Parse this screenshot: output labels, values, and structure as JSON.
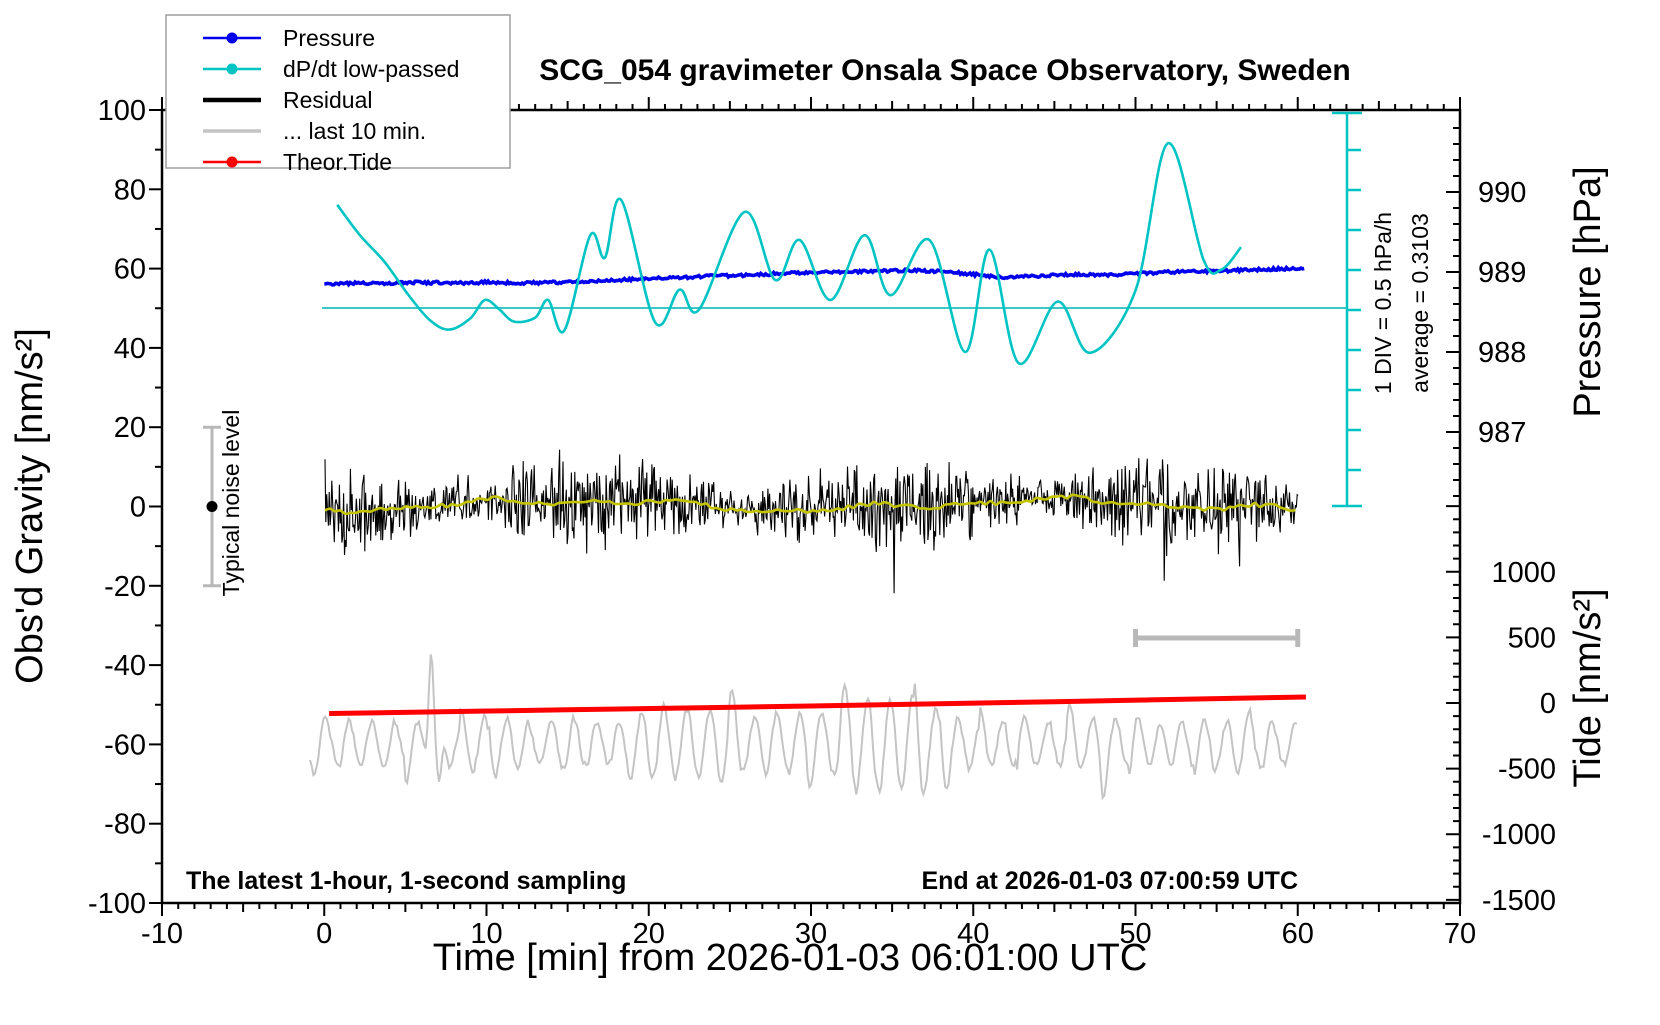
{
  "title": "SCG_054 gravimeter Onsala Space Observatory, Sweden",
  "colors": {
    "pressure": "#0000ee",
    "dpdt": "#00c3c3",
    "dpdt_mean_line": "#3cc6c6",
    "residual": "#000000",
    "residual_smoothed": "#c3c300",
    "last10": "#c4c4c4",
    "tide": "#ff0000",
    "scalebar_gray": "#b8b8b8",
    "frame": "#000000"
  },
  "legend": {
    "items": [
      {
        "label": "Pressure",
        "color": "#0000ee",
        "marker": "line-dot"
      },
      {
        "label": "dP/dt low-passed",
        "color": "#00c3c3",
        "marker": "line-dot"
      },
      {
        "label": "Residual",
        "color": "#000000",
        "marker": "line-thick"
      },
      {
        "label": "... last 10 min.",
        "color": "#c4c4c4",
        "marker": "line"
      },
      {
        "label": "Theor.Tide",
        "color": "#ff0000",
        "marker": "line-dot"
      }
    ]
  },
  "axes": {
    "x": {
      "label": "Time [min] from 2026-01-03 06:01:00 UTC",
      "min": -10,
      "max": 70,
      "major_tick_step": 10,
      "minor_tick_step": 1,
      "tick_values": [
        -10,
        0,
        10,
        20,
        30,
        40,
        50,
        60,
        70
      ]
    },
    "gravity": {
      "label": "Obs'd Gravity [nm/s²]",
      "min": -100,
      "max": 100,
      "major_tick_step": 20,
      "minor_tick_step": 10,
      "tick_values": [
        100,
        80,
        60,
        40,
        20,
        0,
        -20,
        -40,
        -60,
        -80,
        -100
      ]
    },
    "pressure": {
      "label": "Pressure [hPa]",
      "tick_values": [
        990,
        989,
        988,
        987
      ],
      "minor_tick_step": 0.2
    },
    "tide": {
      "label": "Tide [nm/s²]",
      "tick_values": [
        1000,
        500,
        0,
        -500,
        -1000,
        -1500
      ],
      "minor_tick_step": 100
    }
  },
  "annotations": {
    "div_scale": "1 DIV = 0.5 hPa/h",
    "average": "average = 0.3103",
    "noise_level": "Typical noise level",
    "sampling_note": "The latest 1-hour, 1-second sampling",
    "end_time": "End at 2026-01-03 07:00:59 UTC"
  },
  "chart_data": {
    "type": "line",
    "title": "SCG_054 gravimeter Onsala Space Observatory, Sweden",
    "xlabel": "Time [min] from 2026-01-03 06:01:00 UTC",
    "x_range_min": [
      -10,
      70
    ],
    "gravity_range": [
      -100,
      100
    ],
    "pressure_ticks_hpa": [
      987,
      988,
      989,
      990
    ],
    "tide_range": [
      -1500,
      1000
    ],
    "series": [
      {
        "name": "Pressure",
        "axis": "pressure",
        "units": "hPa",
        "x_min": [
          0,
          2,
          4,
          6,
          8,
          10,
          12,
          14,
          16,
          18,
          20,
          22,
          24,
          26,
          28,
          30,
          32,
          34,
          36,
          38,
          40,
          42,
          44,
          46,
          48,
          50,
          52,
          54,
          56,
          58,
          60.5
        ],
        "values": [
          988.85,
          988.86,
          988.86,
          988.87,
          988.86,
          988.87,
          988.86,
          988.87,
          988.88,
          988.9,
          988.92,
          988.93,
          988.95,
          988.96,
          988.98,
          988.99,
          989.0,
          989.01,
          989.02,
          989.01,
          988.97,
          988.93,
          988.95,
          988.97,
          988.96,
          988.98,
          989.0,
          989.01,
          989.02,
          989.03,
          989.05
        ]
      },
      {
        "name": "dP/dt low-passed",
        "axis": "dpdt",
        "units": "hPa/h",
        "mean": 0.3103,
        "div_value_hpa_per_h": 0.5,
        "x_min": [
          0.8,
          2.2,
          3.7,
          5.2,
          6.5,
          7.7,
          9.0,
          9.9,
          10.8,
          11.7,
          13.0,
          13.8,
          14.8,
          16.4,
          17.3,
          18.3,
          20.4,
          21.9,
          23.1,
          25.9,
          27.8,
          29.3,
          31.2,
          33.3,
          34.9,
          37.3,
          39.5,
          41.0,
          42.8,
          45.2,
          47.2,
          50.0,
          52.0,
          54.2,
          55.3,
          56.5
        ],
        "values": [
          1.6,
          1.22,
          0.89,
          0.47,
          0.16,
          0.04,
          0.18,
          0.41,
          0.29,
          0.14,
          0.19,
          0.41,
          0.03,
          1.22,
          0.94,
          1.66,
          0.13,
          0.54,
          0.29,
          1.51,
          0.66,
          1.16,
          0.41,
          1.22,
          0.47,
          1.16,
          -0.24,
          1.04,
          -0.38,
          0.39,
          -0.25,
          0.53,
          2.37,
          0.91,
          0.79,
          1.07
        ]
      },
      {
        "name": "Theor.Tide",
        "axis": "tide",
        "units": "nm/s²",
        "x_min": [
          0.3,
          15,
          30,
          45,
          60.5
        ],
        "values": [
          -80,
          -52,
          -23,
          10,
          46
        ]
      },
      {
        "name": "Residual",
        "axis": "gravity",
        "units": "nm/s²",
        "summary": {
          "mean": 0,
          "typical_amplitude": 12,
          "spike_amplitude": 25,
          "duration_min": 60,
          "sampling": "1 s"
        },
        "render": {
          "seed": 7,
          "samples": 1150
        }
      },
      {
        "name": "Residual smoothed",
        "axis": "gravity",
        "units": "nm/s²",
        "summary": {
          "mean": 0,
          "typical_amplitude": 1.5
        }
      },
      {
        "name": "... last 10 min.",
        "axis": "gravity",
        "units": "nm/s²",
        "summary": {
          "center": -60,
          "typical_amplitude": 9,
          "spike_high": -30,
          "spike_low": -74
        },
        "render": {
          "seed": 12,
          "samples": 590
        }
      }
    ],
    "scale_bars": {
      "ten_minute_bar": {
        "length_min": 10,
        "span_min": [
          50,
          60
        ]
      },
      "noise_bar": {
        "center_nms2": 0,
        "half_range_nms2": 20
      },
      "dpdt_divisions_bar": {
        "div_px_value": "1 DIV = 0.5 hPa/h",
        "average": 0.3103
      }
    }
  }
}
